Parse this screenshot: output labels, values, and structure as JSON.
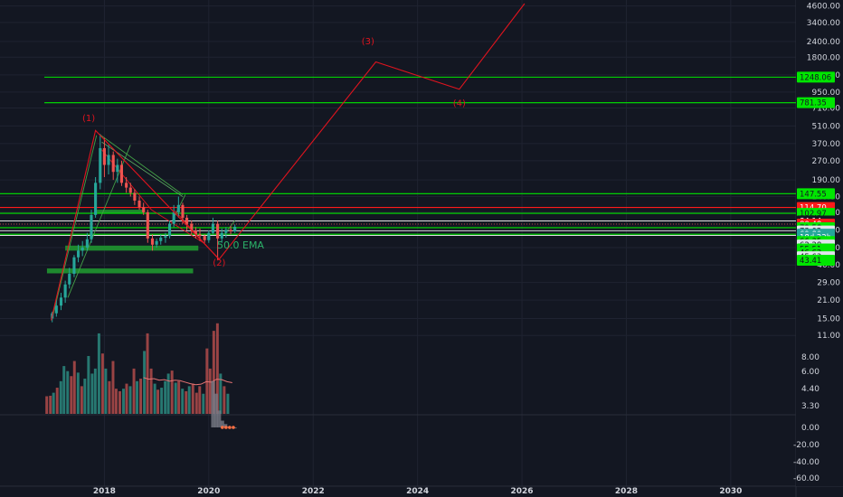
{
  "colors": {
    "background": "#131722",
    "grid": "#1f2331",
    "up": "#26a69a",
    "down": "#ef5350",
    "wave": "#e0141e",
    "level": "#00e600",
    "channel": "#4caf50",
    "price_text": "#d1d4dc"
  },
  "chart_data": {
    "type": "candlestick",
    "x_axis": {
      "ticks": [
        "2018",
        "2020",
        "2022",
        "2024",
        "2026",
        "2028",
        "2030"
      ],
      "range": [
        2016.0,
        2031.25
      ]
    },
    "price_axis": {
      "scale": "log",
      "ticks": [
        "4600.00",
        "3400.00",
        "2400.00",
        "1800.00",
        "1300.00",
        "950.00",
        "710.00",
        "510.00",
        "370.00",
        "270.00",
        "190.00",
        "140.00",
        "105.00",
        "76.00",
        "55.00",
        "40.00",
        "29.00",
        "21.00",
        "15.00",
        "11.00"
      ],
      "range": [
        10.5,
        4800
      ]
    },
    "volume_axis": {
      "ticks": [
        "8.00",
        "6.00",
        "4.40",
        "3.30"
      ]
    },
    "oscillator_axis": {
      "ticks": [
        "0.00",
        "-20.00",
        "-40.00",
        "-60.00"
      ]
    },
    "price_badges": [
      {
        "label": "1248.06",
        "value": 1248.06,
        "bg": "#00e600",
        "fg": "#131722"
      },
      {
        "label": "781.35",
        "value": 781.35,
        "bg": "#00e600",
        "fg": "#131722"
      },
      {
        "label": "147.55",
        "value": 147.55,
        "bg": "#00e600",
        "fg": "#131722"
      },
      {
        "label": "114.70",
        "value": 114.7,
        "bg": "#ff1a1a",
        "fg": "#ffffff"
      },
      {
        "label": "102.97",
        "value": 102.97,
        "bg": "#00e600",
        "fg": "#131722"
      },
      {
        "label": "84.14",
        "value": 89.5,
        "bg": "#131722",
        "fg": "#ffffff"
      },
      {
        "label": "80.48",
        "value": 84.5,
        "bg": "#ff1a1a",
        "fg": "#ffffff"
      },
      {
        "label": "79.58",
        "value": 79.2,
        "bg": "#00e600",
        "fg": "#131722"
      },
      {
        "label": "73.02",
        "value": 74.5,
        "bg": "#e0e3eb",
        "fg": "#131722"
      },
      {
        "label": "69.80",
        "value": 70.3,
        "bg": "#26a69a",
        "fg": "#ffffff"
      },
      {
        "label": "18d 22h",
        "value": 66.4,
        "bg": "#26a69a",
        "fg": "#ffffff"
      },
      {
        "label": "66.35",
        "value": 61.5,
        "bg": "#00e600",
        "fg": "#131722"
      },
      {
        "label": "62.28",
        "value": 57.6,
        "bg": "#e0e3eb",
        "fg": "#131722"
      },
      {
        "label": "55.51",
        "value": 53.6,
        "bg": "#00e600",
        "fg": "#131722"
      },
      {
        "label": "46.62",
        "value": 50.0,
        "bg": "#00e600",
        "fg": "#131722"
      },
      {
        "label": "45.63",
        "value": 46.5,
        "bg": "#e0e3eb",
        "fg": "#131722"
      },
      {
        "label": "43.41",
        "value": 43.6,
        "bg": "#00e600",
        "fg": "#131722"
      }
    ],
    "horizontal_levels": [
      {
        "value": 1248.06,
        "x_start": 2016.85,
        "color": "#00e600"
      },
      {
        "value": 781.35,
        "x_start": 2016.85,
        "color": "#00e600"
      },
      {
        "value": 147.55,
        "x_start": 2016.0,
        "color": "#00e600"
      },
      {
        "value": 114.7,
        "x_start": 2016.0,
        "color": "#ff1a1a"
      },
      {
        "value": 102.97,
        "x_start": 2016.0,
        "color": "#00e600"
      },
      {
        "value": 89.5,
        "x_start": 2016.0,
        "color": "#ffffff"
      },
      {
        "value": 79.2,
        "x_start": 2016.0,
        "color": "#00e600"
      },
      {
        "value": 74.5,
        "x_start": 2016.0,
        "color": "#ffffff"
      },
      {
        "value": 70.3,
        "x_start": 2016.0,
        "color": "#00e600"
      },
      {
        "value": 68.8,
        "x_start": 2016.0,
        "color": "#ffffff"
      }
    ],
    "elliott_wave": {
      "points": [
        {
          "date": 2016.98,
          "price": 14.5
        },
        {
          "date": 2017.83,
          "price": 470
        },
        {
          "date": 2020.2,
          "price": 44.5
        },
        {
          "date": 2023.2,
          "price": 1650
        },
        {
          "date": 2024.8,
          "price": 1000
        },
        {
          "date": 2026.05,
          "price": 4800
        }
      ],
      "labels": [
        {
          "text": "(1)",
          "date": 2017.7,
          "price": 560
        },
        {
          "text": "(2)",
          "date": 2020.2,
          "price": 39.5
        },
        {
          "text": "(3)",
          "date": 2023.05,
          "price": 2280
        },
        {
          "text": "(4)",
          "date": 2024.8,
          "price": 735
        }
      ]
    },
    "zones": [
      {
        "from": 2017.85,
        "to": 2018.75,
        "top": 110,
        "bottom": 103
      },
      {
        "from": 2017.25,
        "to": 2019.8,
        "top": 57,
        "bottom": 52
      },
      {
        "from": 2016.9,
        "to": 2019.7,
        "top": 37.5,
        "bottom": 34.3
      }
    ],
    "watermark": "50.0 EMA",
    "candles": [
      {
        "t": 2017.0,
        "o": 15.0,
        "h": 17.0,
        "l": 14.0,
        "c": 16.5
      },
      {
        "t": 2017.08,
        "o": 16.5,
        "h": 21.0,
        "l": 15.5,
        "c": 19.0
      },
      {
        "t": 2017.17,
        "o": 19.0,
        "h": 24.0,
        "l": 17.5,
        "c": 22.0
      },
      {
        "t": 2017.25,
        "o": 22.0,
        "h": 30.0,
        "l": 20.0,
        "c": 28.0
      },
      {
        "t": 2017.33,
        "o": 28.0,
        "h": 38.0,
        "l": 26.0,
        "c": 34.0
      },
      {
        "t": 2017.42,
        "o": 34.0,
        "h": 48.0,
        "l": 32.0,
        "c": 46.0
      },
      {
        "t": 2017.5,
        "o": 46.0,
        "h": 58.0,
        "l": 42.0,
        "c": 52.0
      },
      {
        "t": 2017.58,
        "o": 52.0,
        "h": 62.0,
        "l": 47.0,
        "c": 55.0
      },
      {
        "t": 2017.67,
        "o": 55.0,
        "h": 72.0,
        "l": 52.0,
        "c": 64.0
      },
      {
        "t": 2017.75,
        "o": 64.0,
        "h": 110.0,
        "l": 60.0,
        "c": 100.0
      },
      {
        "t": 2017.83,
        "o": 100.0,
        "h": 200.0,
        "l": 95.0,
        "c": 180.0
      },
      {
        "t": 2017.92,
        "o": 180.0,
        "h": 440.0,
        "l": 160.0,
        "c": 340.0
      },
      {
        "t": 2018.0,
        "o": 340.0,
        "h": 410.0,
        "l": 200.0,
        "c": 250.0
      },
      {
        "t": 2018.08,
        "o": 250.0,
        "h": 360.0,
        "l": 210.0,
        "c": 300.0
      },
      {
        "t": 2018.17,
        "o": 300.0,
        "h": 320.0,
        "l": 190.0,
        "c": 220.0
      },
      {
        "t": 2018.25,
        "o": 220.0,
        "h": 280.0,
        "l": 180.0,
        "c": 250.0
      },
      {
        "t": 2018.33,
        "o": 250.0,
        "h": 270.0,
        "l": 170.0,
        "c": 180.0
      },
      {
        "t": 2018.42,
        "o": 180.0,
        "h": 200.0,
        "l": 150.0,
        "c": 165.0
      },
      {
        "t": 2018.5,
        "o": 165.0,
        "h": 180.0,
        "l": 140.0,
        "c": 150.0
      },
      {
        "t": 2018.58,
        "o": 150.0,
        "h": 160.0,
        "l": 120.0,
        "c": 130.0
      },
      {
        "t": 2018.67,
        "o": 130.0,
        "h": 140.0,
        "l": 110.0,
        "c": 115.0
      },
      {
        "t": 2018.75,
        "o": 115.0,
        "h": 125.0,
        "l": 100.0,
        "c": 105.0
      },
      {
        "t": 2018.83,
        "o": 105.0,
        "h": 110.0,
        "l": 60.0,
        "c": 65.0
      },
      {
        "t": 2018.92,
        "o": 65.0,
        "h": 70.0,
        "l": 52.0,
        "c": 58.0
      },
      {
        "t": 2019.0,
        "o": 58.0,
        "h": 65.0,
        "l": 55.0,
        "c": 62.0
      },
      {
        "t": 2019.08,
        "o": 62.0,
        "h": 70.0,
        "l": 58.0,
        "c": 66.0
      },
      {
        "t": 2019.17,
        "o": 66.0,
        "h": 72.0,
        "l": 60.0,
        "c": 68.0
      },
      {
        "t": 2019.25,
        "o": 68.0,
        "h": 90.0,
        "l": 65.0,
        "c": 85.0
      },
      {
        "t": 2019.33,
        "o": 85.0,
        "h": 120.0,
        "l": 80.0,
        "c": 105.0
      },
      {
        "t": 2019.42,
        "o": 105.0,
        "h": 140.0,
        "l": 95.0,
        "c": 120.0
      },
      {
        "t": 2019.5,
        "o": 120.0,
        "h": 125.0,
        "l": 85.0,
        "c": 95.0
      },
      {
        "t": 2019.58,
        "o": 95.0,
        "h": 100.0,
        "l": 75.0,
        "c": 85.0
      },
      {
        "t": 2019.67,
        "o": 85.0,
        "h": 90.0,
        "l": 70.0,
        "c": 75.0
      },
      {
        "t": 2019.75,
        "o": 75.0,
        "h": 80.0,
        "l": 65.0,
        "c": 70.0
      },
      {
        "t": 2019.83,
        "o": 70.0,
        "h": 78.0,
        "l": 62.0,
        "c": 68.0
      },
      {
        "t": 2019.92,
        "o": 68.0,
        "h": 70.0,
        "l": 60.0,
        "c": 63.0
      },
      {
        "t": 2020.0,
        "o": 63.0,
        "h": 75.0,
        "l": 60.0,
        "c": 72.0
      },
      {
        "t": 2020.08,
        "o": 72.0,
        "h": 95.0,
        "l": 70.0,
        "c": 85.0
      },
      {
        "t": 2020.17,
        "o": 85.0,
        "h": 90.0,
        "l": 44.0,
        "c": 65.0
      },
      {
        "t": 2020.25,
        "o": 65.0,
        "h": 78.0,
        "l": 60.0,
        "c": 72.0
      },
      {
        "t": 2020.33,
        "o": 72.0,
        "h": 80.0,
        "l": 66.0,
        "c": 76.0
      },
      {
        "t": 2020.42,
        "o": 76.0,
        "h": 82.0,
        "l": 70.0,
        "c": 74.0
      },
      {
        "t": 2020.5,
        "o": 74.0,
        "h": 84.0,
        "l": 72.0,
        "c": 80.5
      }
    ],
    "volume_bars": [
      {
        "t": 2016.9,
        "v": 3.5,
        "up": false
      },
      {
        "t": 2016.97,
        "v": 3.6,
        "up": false
      },
      {
        "t": 2017.03,
        "v": 4.2,
        "up": true
      },
      {
        "t": 2017.1,
        "v": 5.2,
        "up": false
      },
      {
        "t": 2017.17,
        "v": 6.5,
        "up": true
      },
      {
        "t": 2017.23,
        "v": 9.5,
        "up": true
      },
      {
        "t": 2017.3,
        "v": 8.5,
        "up": true
      },
      {
        "t": 2017.37,
        "v": 7.5,
        "up": false
      },
      {
        "t": 2017.43,
        "v": 10.5,
        "up": false
      },
      {
        "t": 2017.5,
        "v": 8.2,
        "up": true
      },
      {
        "t": 2017.57,
        "v": 5.5,
        "up": false
      },
      {
        "t": 2017.63,
        "v": 7.0,
        "up": true
      },
      {
        "t": 2017.7,
        "v": 11.5,
        "up": true
      },
      {
        "t": 2017.77,
        "v": 8.0,
        "up": true
      },
      {
        "t": 2017.83,
        "v": 9.0,
        "up": true
      },
      {
        "t": 2017.9,
        "v": 16.0,
        "up": true
      },
      {
        "t": 2017.97,
        "v": 12.0,
        "up": false
      },
      {
        "t": 2018.03,
        "v": 9.0,
        "up": true
      },
      {
        "t": 2018.1,
        "v": 6.5,
        "up": false
      },
      {
        "t": 2018.17,
        "v": 10.5,
        "up": false
      },
      {
        "t": 2018.23,
        "v": 5.0,
        "up": false
      },
      {
        "t": 2018.3,
        "v": 4.5,
        "up": false
      },
      {
        "t": 2018.37,
        "v": 5.0,
        "up": true
      },
      {
        "t": 2018.43,
        "v": 6.0,
        "up": false
      },
      {
        "t": 2018.5,
        "v": 5.5,
        "up": true
      },
      {
        "t": 2018.57,
        "v": 9.0,
        "up": false
      },
      {
        "t": 2018.63,
        "v": 6.5,
        "up": true
      },
      {
        "t": 2018.7,
        "v": 7.0,
        "up": false
      },
      {
        "t": 2018.77,
        "v": 12.5,
        "up": true
      },
      {
        "t": 2018.83,
        "v": 16.0,
        "up": false
      },
      {
        "t": 2018.9,
        "v": 9.0,
        "up": false
      },
      {
        "t": 2018.97,
        "v": 6.0,
        "up": true
      },
      {
        "t": 2019.03,
        "v": 4.8,
        "up": false
      },
      {
        "t": 2019.1,
        "v": 5.2,
        "up": true
      },
      {
        "t": 2019.17,
        "v": 6.5,
        "up": true
      },
      {
        "t": 2019.23,
        "v": 8.0,
        "up": true
      },
      {
        "t": 2019.3,
        "v": 8.6,
        "up": false
      },
      {
        "t": 2019.37,
        "v": 6.2,
        "up": true
      },
      {
        "t": 2019.43,
        "v": 6.5,
        "up": false
      },
      {
        "t": 2019.5,
        "v": 5.0,
        "up": true
      },
      {
        "t": 2019.57,
        "v": 4.5,
        "up": false
      },
      {
        "t": 2019.63,
        "v": 5.5,
        "up": true
      },
      {
        "t": 2019.7,
        "v": 6.0,
        "up": false
      },
      {
        "t": 2019.77,
        "v": 4.2,
        "up": false
      },
      {
        "t": 2019.83,
        "v": 5.5,
        "up": false
      },
      {
        "t": 2019.9,
        "v": 4.0,
        "up": true
      },
      {
        "t": 2019.97,
        "v": 13.0,
        "up": false
      },
      {
        "t": 2020.03,
        "v": 9.0,
        "up": false
      },
      {
        "t": 2020.1,
        "v": 16.5,
        "up": false
      },
      {
        "t": 2020.17,
        "v": 18.0,
        "up": false
      },
      {
        "t": 2020.23,
        "v": 8.0,
        "up": true
      },
      {
        "t": 2020.3,
        "v": 5.5,
        "up": false
      },
      {
        "t": 2020.37,
        "v": 4.0,
        "up": true
      }
    ],
    "volume_ma": [
      {
        "t": 2018.75,
        "v": 7.2
      },
      {
        "t": 2018.85,
        "v": 6.9
      },
      {
        "t": 2018.95,
        "v": 7.0
      },
      {
        "t": 2019.05,
        "v": 6.7
      },
      {
        "t": 2019.15,
        "v": 6.8
      },
      {
        "t": 2019.25,
        "v": 6.5
      },
      {
        "t": 2019.35,
        "v": 6.7
      },
      {
        "t": 2019.45,
        "v": 6.6
      },
      {
        "t": 2019.55,
        "v": 6.3
      },
      {
        "t": 2019.65,
        "v": 6.0
      },
      {
        "t": 2019.75,
        "v": 5.8
      },
      {
        "t": 2019.85,
        "v": 5.9
      },
      {
        "t": 2019.95,
        "v": 6.4
      },
      {
        "t": 2020.05,
        "v": 6.3
      },
      {
        "t": 2020.15,
        "v": 6.9
      },
      {
        "t": 2020.25,
        "v": 6.8
      },
      {
        "t": 2020.35,
        "v": 6.4
      },
      {
        "t": 2020.45,
        "v": 6.2
      }
    ],
    "oscillator": [
      {
        "t": 2020.08,
        "v": -55
      },
      {
        "t": 2020.14,
        "v": -40
      },
      {
        "t": 2020.2,
        "v": -20
      },
      {
        "t": 2020.26,
        "v": -8
      },
      {
        "t": 2020.32,
        "v": -4
      },
      {
        "t": 2020.38,
        "v": -1
      },
      {
        "t": 2020.44,
        "v": 0
      },
      {
        "t": 2020.5,
        "v": 1
      }
    ],
    "oscillator_markers": [
      {
        "t": 2020.26,
        "v": 0
      },
      {
        "t": 2020.33,
        "v": 0
      },
      {
        "t": 2020.4,
        "v": 0
      },
      {
        "t": 2020.47,
        "v": 0
      }
    ]
  }
}
